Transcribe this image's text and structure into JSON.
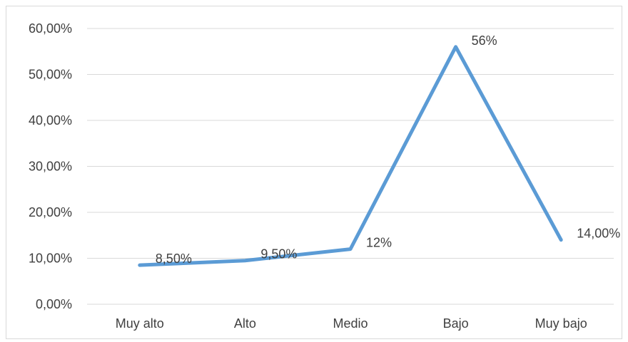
{
  "chart_data": {
    "type": "line",
    "title": "",
    "xlabel": "",
    "ylabel": "",
    "categories": [
      "Muy alto",
      "Alto",
      "Medio",
      "Bajo",
      "Muy bajo"
    ],
    "series": [
      {
        "values": [
          8.5,
          9.5,
          12,
          56,
          14
        ],
        "data_labels": [
          "8,50%",
          "9,50%",
          "12%",
          "56%",
          "14,00%"
        ],
        "color": "#5B9BD5"
      }
    ],
    "ylim": [
      0,
      60
    ],
    "y_ticks": [
      0,
      10,
      20,
      30,
      40,
      50,
      60
    ],
    "y_tick_labels": [
      "0,00%",
      "10,00%",
      "20,00%",
      "30,00%",
      "40,00%",
      "50,00%",
      "60,00%"
    ],
    "grid": true,
    "legend": "none",
    "colors": {
      "gridline": "#d9d9d9",
      "text": "#404040"
    }
  }
}
